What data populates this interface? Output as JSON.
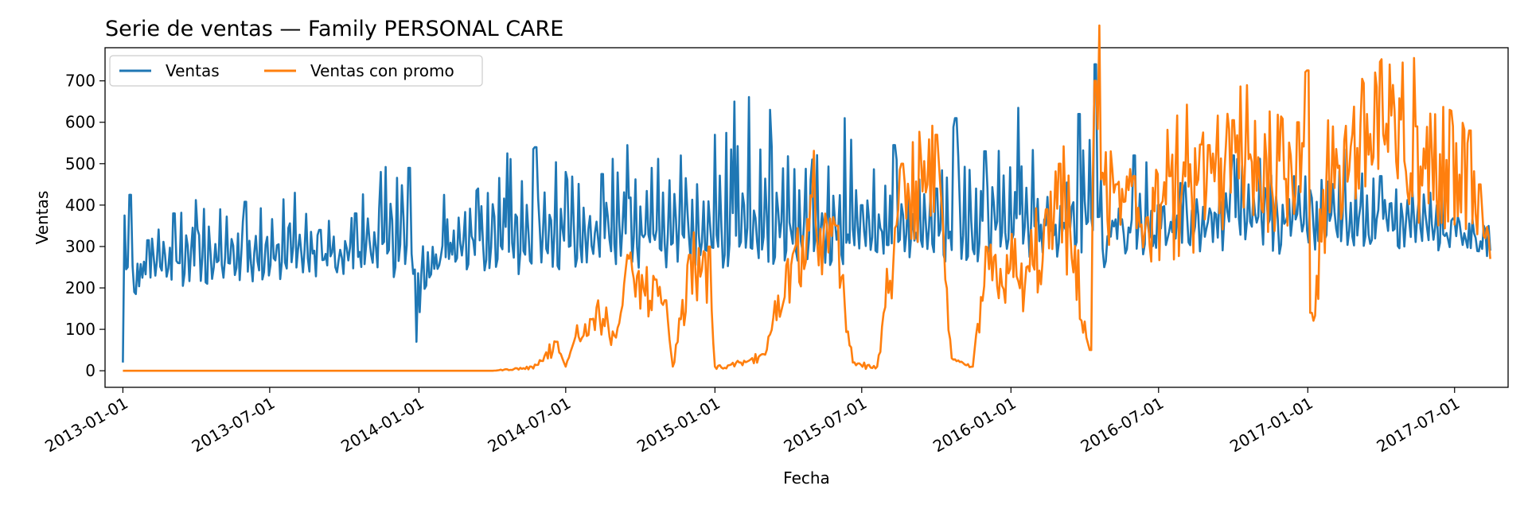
{
  "chart_data": {
    "type": "line",
    "title": "Serie de ventas — Family PERSONAL CARE",
    "xlabel": "Fecha",
    "ylabel": "Ventas",
    "x_range": [
      "2012-12-10",
      "2017-09-05"
    ],
    "ylim": [
      -40,
      780
    ],
    "x_ticks": [
      "2013-01-01",
      "2013-07-01",
      "2014-01-01",
      "2014-07-01",
      "2015-01-01",
      "2015-07-01",
      "2016-01-01",
      "2016-07-01",
      "2017-01-01",
      "2017-07-01"
    ],
    "y_ticks": [
      0,
      100,
      200,
      300,
      400,
      500,
      600,
      700
    ],
    "grid": false,
    "legend": {
      "position": "top-left",
      "ncol": 2
    },
    "x_sampling": "approx. one point every 4 days, 2013-01-01 to 2017-08-15",
    "series": [
      {
        "name": "Ventas",
        "color": "#1f77b4",
        "start": "2013-01-01",
        "end": "2017-08-15",
        "keypoints": [
          [
            "2013-01-01",
            20
          ],
          [
            "2013-01-03",
            375
          ],
          [
            "2013-01-07",
            250
          ],
          [
            "2013-01-10",
            425
          ],
          [
            "2013-01-15",
            190
          ],
          [
            "2013-02-01",
            315
          ],
          [
            "2013-03-05",
            380
          ],
          [
            "2013-04-01",
            412
          ],
          [
            "2013-05-01",
            390
          ],
          [
            "2013-06-01",
            408
          ],
          [
            "2013-08-01",
            430
          ],
          [
            "2013-09-01",
            340
          ],
          [
            "2013-10-15",
            380
          ],
          [
            "2013-11-15",
            480
          ],
          [
            "2013-12-20",
            490
          ],
          [
            "2013-12-29",
            70
          ],
          [
            "2014-02-01",
            425
          ],
          [
            "2014-03-15",
            440
          ],
          [
            "2014-04-20",
            525
          ],
          [
            "2014-05-25",
            540
          ],
          [
            "2014-07-01",
            480
          ],
          [
            "2014-08-15",
            475
          ],
          [
            "2014-09-15",
            545
          ],
          [
            "2014-10-15",
            490
          ],
          [
            "2014-11-20",
            520
          ],
          [
            "2015-01-01",
            570
          ],
          [
            "2015-01-25",
            650
          ],
          [
            "2015-03-10",
            630
          ],
          [
            "2015-05-01",
            510
          ],
          [
            "2015-06-10",
            610
          ],
          [
            "2015-07-01",
            400
          ],
          [
            "2015-08-10",
            545
          ],
          [
            "2015-10-01",
            440
          ],
          [
            "2015-10-25",
            610
          ],
          [
            "2015-11-30",
            530
          ],
          [
            "2016-01-10",
            635
          ],
          [
            "2016-02-15",
            420
          ],
          [
            "2016-03-25",
            620
          ],
          [
            "2016-04-14",
            740
          ],
          [
            "2016-04-25",
            250
          ],
          [
            "2016-06-01",
            520
          ],
          [
            "2016-07-01",
            400
          ],
          [
            "2016-08-01",
            440
          ],
          [
            "2016-10-01",
            520
          ],
          [
            "2016-12-15",
            470
          ],
          [
            "2017-02-15",
            535
          ],
          [
            "2017-04-01",
            470
          ],
          [
            "2017-06-01",
            430
          ],
          [
            "2017-08-15",
            290
          ]
        ],
        "base_level": [
          [
            "2013-01-01",
            230
          ],
          [
            "2014-01-01",
            270
          ],
          [
            "2015-01-01",
            290
          ],
          [
            "2016-01-01",
            300
          ],
          [
            "2016-05-01",
            330
          ],
          [
            "2017-08-15",
            330
          ]
        ],
        "low_floor": [
          [
            "2013-01-01",
            140
          ],
          [
            "2014-01-01",
            160
          ],
          [
            "2015-01-01",
            180
          ],
          [
            "2016-01-01",
            190
          ],
          [
            "2017-08-15",
            220
          ]
        ]
      },
      {
        "name": "Ventas con promo",
        "color": "#ff7f0e",
        "start": "2013-01-01",
        "end": "2017-08-15",
        "keypoints": [
          [
            "2013-01-01",
            0
          ],
          [
            "2014-04-01",
            0
          ],
          [
            "2014-05-20",
            10
          ],
          [
            "2014-06-20",
            70
          ],
          [
            "2014-07-01",
            10
          ],
          [
            "2014-07-15",
            110
          ],
          [
            "2014-08-10",
            170
          ],
          [
            "2014-09-01",
            80
          ],
          [
            "2014-09-15",
            280
          ],
          [
            "2014-10-20",
            220
          ],
          [
            "2014-11-01",
            170
          ],
          [
            "2014-11-10",
            10
          ],
          [
            "2014-12-01",
            280
          ],
          [
            "2014-12-25",
            300
          ],
          [
            "2015-01-01",
            10
          ],
          [
            "2015-02-01",
            20
          ],
          [
            "2015-03-01",
            40
          ],
          [
            "2015-04-01",
            270
          ],
          [
            "2015-05-01",
            420
          ],
          [
            "2015-06-01",
            350
          ],
          [
            "2015-06-20",
            20
          ],
          [
            "2015-07-20",
            10
          ],
          [
            "2015-08-20",
            500
          ],
          [
            "2015-10-01",
            570
          ],
          [
            "2015-10-20",
            30
          ],
          [
            "2015-11-15",
            10
          ],
          [
            "2015-12-01",
            300
          ],
          [
            "2016-01-20",
            250
          ],
          [
            "2016-02-15",
            390
          ],
          [
            "2016-03-01",
            500
          ],
          [
            "2016-04-08",
            50
          ],
          [
            "2016-04-14",
            700
          ],
          [
            "2016-05-10",
            450
          ],
          [
            "2016-06-01",
            470
          ],
          [
            "2016-07-15",
            470
          ],
          [
            "2016-09-01",
            545
          ],
          [
            "2016-10-01",
            605
          ],
          [
            "2016-12-20",
            600
          ],
          [
            "2017-01-01",
            725
          ],
          [
            "2017-01-05",
            140
          ],
          [
            "2017-02-01",
            590
          ],
          [
            "2017-03-25",
            720
          ],
          [
            "2017-05-15",
            590
          ],
          [
            "2017-06-25",
            630
          ],
          [
            "2017-07-20",
            580
          ],
          [
            "2017-08-01",
            450
          ],
          [
            "2017-08-15",
            270
          ]
        ]
      }
    ]
  }
}
